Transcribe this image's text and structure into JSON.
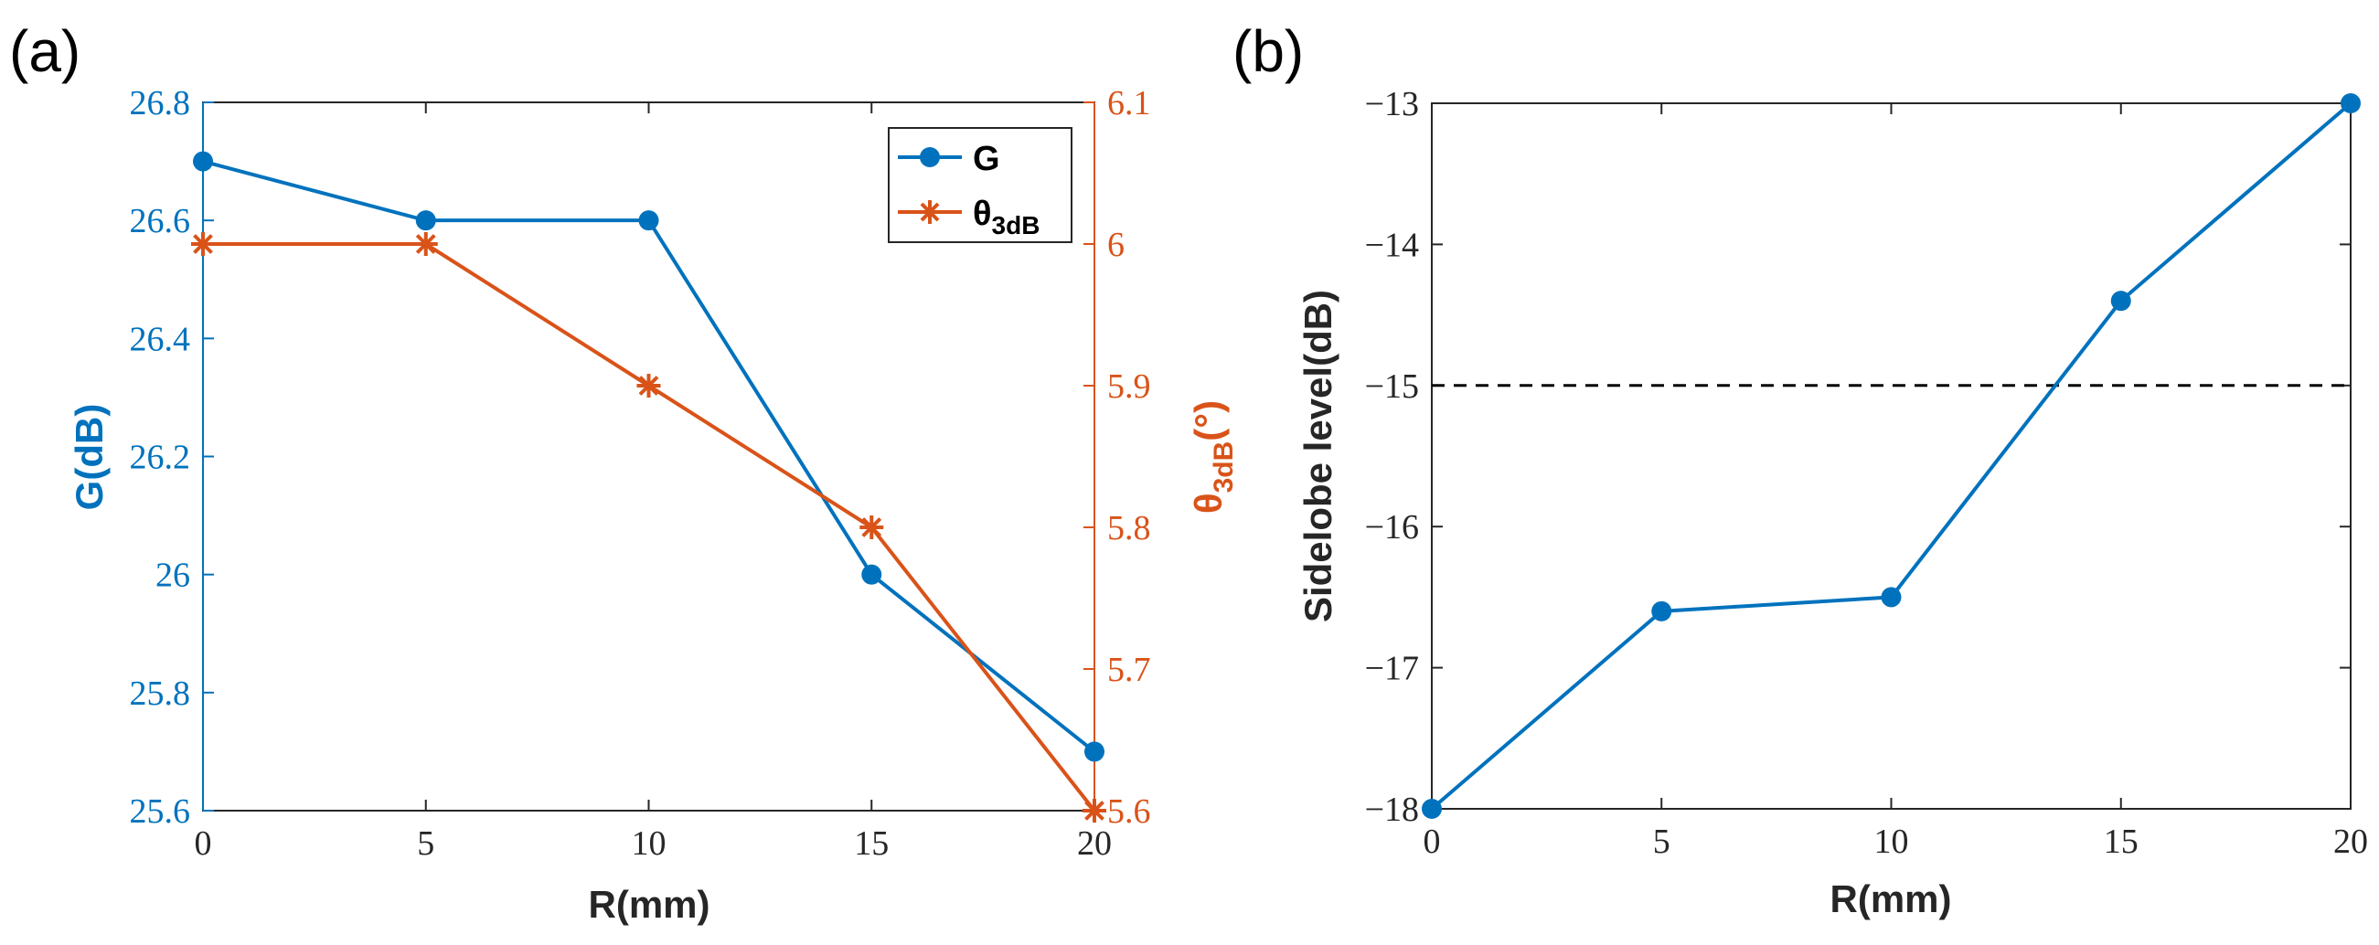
{
  "colors": {
    "g_series": "#0072BD",
    "theta_series": "#D95319",
    "axis": "#262626",
    "dashed": "#000000",
    "background": "#ffffff"
  },
  "chart_data": [
    {
      "panel_label": "(a)",
      "type": "line",
      "x": [
        0,
        5,
        10,
        15,
        20
      ],
      "xlim": [
        0,
        20
      ],
      "xticks": [
        "0",
        "5",
        "10",
        "15",
        "20"
      ],
      "xlabel": "R(mm)",
      "left_axis": {
        "label": "G(dB)",
        "ylim": [
          25.6,
          26.8
        ],
        "ticks": [
          "25.6",
          "25.8",
          "26",
          "26.2",
          "26.4",
          "26.6",
          "26.8"
        ],
        "color": "#0072BD"
      },
      "right_axis": {
        "label_main": "θ",
        "label_sub": "3dB",
        "label_unit": "(°)",
        "ylim": [
          5.6,
          6.1
        ],
        "ticks": [
          "5.6",
          "5.7",
          "5.8",
          "5.9",
          "6",
          "6.1"
        ],
        "color": "#D95319"
      },
      "series": [
        {
          "name": "G",
          "axis": "left",
          "marker": "circle",
          "color": "#0072BD",
          "values": [
            26.7,
            26.6,
            26.6,
            26.0,
            25.7
          ]
        },
        {
          "name": "θ",
          "name_sub": "3dB",
          "axis": "right",
          "marker": "asterisk",
          "color": "#D95319",
          "values": [
            6.0,
            6.0,
            5.9,
            5.8,
            5.6
          ]
        }
      ],
      "legend": {
        "position": "top-right",
        "entries": [
          "G",
          "θ3dB"
        ]
      }
    },
    {
      "panel_label": "(b)",
      "type": "line",
      "x": [
        0,
        5,
        10,
        15,
        20
      ],
      "xlim": [
        0,
        20
      ],
      "xticks": [
        "0",
        "5",
        "10",
        "15",
        "20"
      ],
      "xlabel": "R(mm)",
      "ylabel": "Sidelobe level(dB)",
      "ylim": [
        -18,
        -13
      ],
      "yticks": [
        "−18",
        "−17",
        "−16",
        "−15",
        "−14",
        "−13"
      ],
      "series": [
        {
          "name": "Sidelobe level",
          "marker": "circle",
          "color": "#0072BD",
          "values": [
            -18.0,
            -16.6,
            -16.5,
            -14.4,
            -13.0
          ]
        }
      ],
      "reference_line": {
        "y": -15,
        "style": "dashed",
        "color": "#000000"
      }
    }
  ]
}
